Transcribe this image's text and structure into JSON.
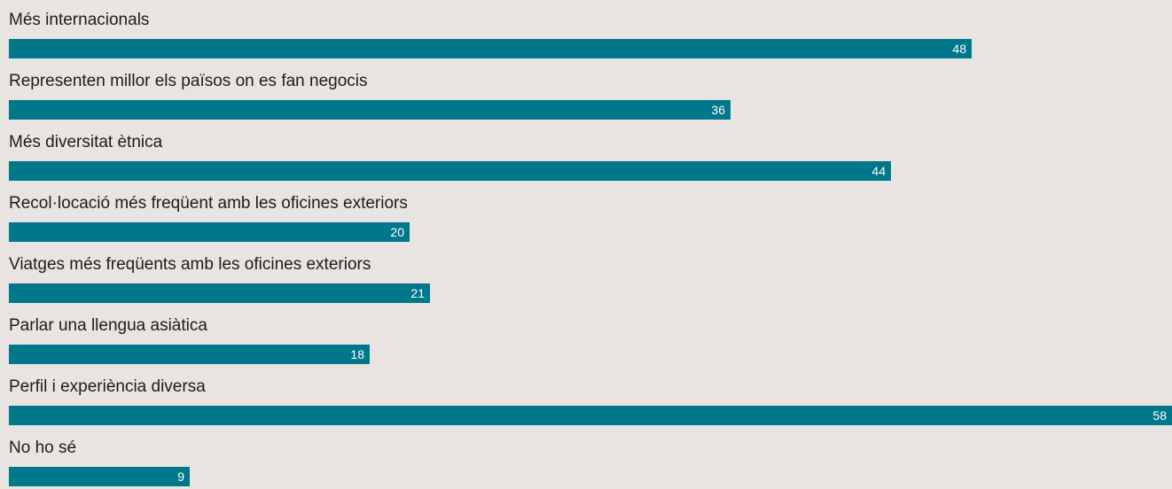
{
  "chart_data": {
    "type": "bar",
    "orientation": "horizontal",
    "categories": [
      "Més internacionals",
      "Representen millor els països on es fan negocis",
      "Més diversitat ètnica",
      "Recol·locació més freqüent amb les oficines exteriors",
      "Viatges més freqüents amb les oficines exteriors",
      "Parlar una llengua asiàtica",
      "Perfil i experiència diversa",
      "No ho sé"
    ],
    "values": [
      48,
      36,
      44,
      20,
      21,
      18,
      58,
      9
    ],
    "data_labels": [
      "48",
      "36",
      "44",
      "20",
      "21",
      "18",
      "58",
      "9"
    ],
    "xlim": [
      0,
      58
    ],
    "grid": false,
    "legend": "none",
    "bar_color": "#00778a",
    "background_color": "#e7e4e1",
    "label_color": "#1d1d1b",
    "value_label_color": "#ffffff"
  }
}
